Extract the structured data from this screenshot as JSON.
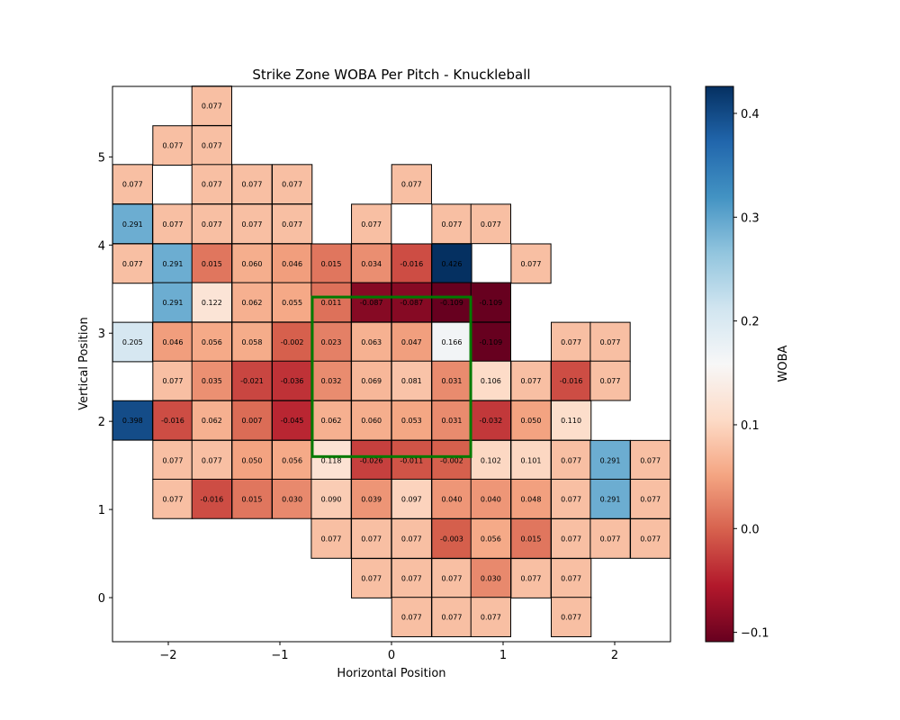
{
  "chart_data": {
    "type": "heatmap",
    "title": "Strike Zone WOBA Per Pitch - Knuckleball",
    "xlabel": "Horizontal Position",
    "ylabel": "Vertical Position",
    "xlim": [
      -2.5,
      2.5
    ],
    "ylim": [
      -0.5,
      5.8
    ],
    "xticks": [
      -2,
      -1,
      0,
      1,
      2
    ],
    "xtick_labels": [
      "−2",
      "−1",
      "0",
      "1",
      "2"
    ],
    "yticks": [
      0,
      1,
      2,
      3,
      4,
      5
    ],
    "ytick_labels": [
      "0",
      "1",
      "2",
      "3",
      "4",
      "5"
    ],
    "colorbar": {
      "label": "WOBA",
      "colormap": "RdBu",
      "range": [
        -0.109,
        0.426
      ],
      "ticks": [
        -0.1,
        0.0,
        0.1,
        0.2,
        0.3,
        0.4
      ],
      "tick_labels": [
        "−0.1",
        "0.0",
        "0.1",
        "0.2",
        "0.3",
        "0.4"
      ]
    },
    "grid": false,
    "cell_size": {
      "x": 0.357,
      "y": 0.447
    },
    "strike_zone": {
      "x": [
        -0.71,
        0.71
      ],
      "y": [
        1.6,
        3.41
      ],
      "color": "#007a00"
    },
    "cells": [
      {
        "x": -1.61,
        "y": 5.58,
        "value": 0.077
      },
      {
        "x": -1.96,
        "y": 5.13,
        "value": 0.077
      },
      {
        "x": -1.61,
        "y": 5.13,
        "value": 0.077
      },
      {
        "x": -2.32,
        "y": 4.69,
        "value": 0.077
      },
      {
        "x": -1.61,
        "y": 4.69,
        "value": 0.077
      },
      {
        "x": -1.25,
        "y": 4.69,
        "value": 0.077
      },
      {
        "x": -0.89,
        "y": 4.69,
        "value": 0.077
      },
      {
        "x": 0.18,
        "y": 4.69,
        "value": 0.077
      },
      {
        "x": -2.32,
        "y": 4.24,
        "value": 0.291
      },
      {
        "x": -1.96,
        "y": 4.24,
        "value": 0.077
      },
      {
        "x": -1.61,
        "y": 4.24,
        "value": 0.077
      },
      {
        "x": -1.25,
        "y": 4.24,
        "value": 0.077
      },
      {
        "x": -0.89,
        "y": 4.24,
        "value": 0.077
      },
      {
        "x": -0.18,
        "y": 4.24,
        "value": 0.077
      },
      {
        "x": 0.54,
        "y": 4.24,
        "value": 0.077
      },
      {
        "x": 0.89,
        "y": 4.24,
        "value": 0.077
      },
      {
        "x": -2.32,
        "y": 3.79,
        "value": 0.077
      },
      {
        "x": -1.96,
        "y": 3.79,
        "value": 0.291
      },
      {
        "x": -1.61,
        "y": 3.79,
        "value": 0.015
      },
      {
        "x": -1.25,
        "y": 3.79,
        "value": 0.06
      },
      {
        "x": -0.89,
        "y": 3.79,
        "value": 0.046
      },
      {
        "x": -0.54,
        "y": 3.79,
        "value": 0.015
      },
      {
        "x": -0.18,
        "y": 3.79,
        "value": 0.034
      },
      {
        "x": 0.18,
        "y": 3.79,
        "value": -0.016
      },
      {
        "x": 0.54,
        "y": 3.79,
        "value": 0.426
      },
      {
        "x": 1.25,
        "y": 3.79,
        "value": 0.077
      },
      {
        "x": -1.96,
        "y": 3.35,
        "value": 0.291
      },
      {
        "x": -1.61,
        "y": 3.35,
        "value": 0.122
      },
      {
        "x": -1.25,
        "y": 3.35,
        "value": 0.062
      },
      {
        "x": -0.89,
        "y": 3.35,
        "value": 0.055
      },
      {
        "x": -0.54,
        "y": 3.35,
        "value": 0.011
      },
      {
        "x": -0.18,
        "y": 3.35,
        "value": -0.087
      },
      {
        "x": 0.18,
        "y": 3.35,
        "value": -0.087
      },
      {
        "x": 0.54,
        "y": 3.35,
        "value": -0.109
      },
      {
        "x": 0.89,
        "y": 3.35,
        "value": -0.109
      },
      {
        "x": -2.32,
        "y": 2.9,
        "value": 0.205
      },
      {
        "x": -1.96,
        "y": 2.9,
        "value": 0.046
      },
      {
        "x": -1.61,
        "y": 2.9,
        "value": 0.056
      },
      {
        "x": -1.25,
        "y": 2.9,
        "value": 0.058
      },
      {
        "x": -0.89,
        "y": 2.9,
        "value": -0.002
      },
      {
        "x": -0.54,
        "y": 2.9,
        "value": 0.023
      },
      {
        "x": -0.18,
        "y": 2.9,
        "value": 0.063
      },
      {
        "x": 0.18,
        "y": 2.9,
        "value": 0.047
      },
      {
        "x": 0.54,
        "y": 2.9,
        "value": 0.166
      },
      {
        "x": 0.89,
        "y": 2.9,
        "value": -0.109
      },
      {
        "x": 1.61,
        "y": 2.9,
        "value": 0.077
      },
      {
        "x": 1.96,
        "y": 2.9,
        "value": 0.077
      },
      {
        "x": -1.96,
        "y": 2.46,
        "value": 0.077
      },
      {
        "x": -1.61,
        "y": 2.46,
        "value": 0.035
      },
      {
        "x": -1.25,
        "y": 2.46,
        "value": -0.021
      },
      {
        "x": -0.89,
        "y": 2.46,
        "value": -0.036
      },
      {
        "x": -0.54,
        "y": 2.46,
        "value": 0.032
      },
      {
        "x": -0.18,
        "y": 2.46,
        "value": 0.069
      },
      {
        "x": 0.18,
        "y": 2.46,
        "value": 0.081
      },
      {
        "x": 0.54,
        "y": 2.46,
        "value": 0.031
      },
      {
        "x": 0.89,
        "y": 2.46,
        "value": 0.106
      },
      {
        "x": 1.25,
        "y": 2.46,
        "value": 0.077
      },
      {
        "x": 1.61,
        "y": 2.46,
        "value": -0.016
      },
      {
        "x": 1.96,
        "y": 2.46,
        "value": 0.077
      },
      {
        "x": -2.32,
        "y": 2.01,
        "value": 0.398
      },
      {
        "x": -1.96,
        "y": 2.01,
        "value": -0.016
      },
      {
        "x": -1.61,
        "y": 2.01,
        "value": 0.062
      },
      {
        "x": -1.25,
        "y": 2.01,
        "value": 0.007
      },
      {
        "x": -0.89,
        "y": 2.01,
        "value": -0.045
      },
      {
        "x": -0.54,
        "y": 2.01,
        "value": 0.062
      },
      {
        "x": -0.18,
        "y": 2.01,
        "value": 0.06
      },
      {
        "x": 0.18,
        "y": 2.01,
        "value": 0.053
      },
      {
        "x": 0.54,
        "y": 2.01,
        "value": 0.031
      },
      {
        "x": 0.89,
        "y": 2.01,
        "value": -0.032
      },
      {
        "x": 1.25,
        "y": 2.01,
        "value": 0.05
      },
      {
        "x": 1.61,
        "y": 2.01,
        "value": 0.11
      },
      {
        "x": -1.96,
        "y": 1.56,
        "value": 0.077
      },
      {
        "x": -1.61,
        "y": 1.56,
        "value": 0.077
      },
      {
        "x": -1.25,
        "y": 1.56,
        "value": 0.05
      },
      {
        "x": -0.89,
        "y": 1.56,
        "value": 0.056
      },
      {
        "x": -0.54,
        "y": 1.56,
        "value": 0.118
      },
      {
        "x": -0.18,
        "y": 1.56,
        "value": -0.026
      },
      {
        "x": 0.18,
        "y": 1.56,
        "value": -0.011
      },
      {
        "x": 0.54,
        "y": 1.56,
        "value": -0.002
      },
      {
        "x": 0.89,
        "y": 1.56,
        "value": 0.102
      },
      {
        "x": 1.25,
        "y": 1.56,
        "value": 0.101
      },
      {
        "x": 1.61,
        "y": 1.56,
        "value": 0.077
      },
      {
        "x": 1.96,
        "y": 1.56,
        "value": 0.291
      },
      {
        "x": 2.32,
        "y": 1.56,
        "value": 0.077
      },
      {
        "x": -1.96,
        "y": 1.12,
        "value": 0.077
      },
      {
        "x": -1.61,
        "y": 1.12,
        "value": -0.016
      },
      {
        "x": -1.25,
        "y": 1.12,
        "value": 0.015
      },
      {
        "x": -0.89,
        "y": 1.12,
        "value": 0.03
      },
      {
        "x": -0.54,
        "y": 1.12,
        "value": 0.09
      },
      {
        "x": -0.18,
        "y": 1.12,
        "value": 0.039
      },
      {
        "x": 0.18,
        "y": 1.12,
        "value": 0.097
      },
      {
        "x": 0.54,
        "y": 1.12,
        "value": 0.04
      },
      {
        "x": 0.89,
        "y": 1.12,
        "value": 0.04
      },
      {
        "x": 1.25,
        "y": 1.12,
        "value": 0.048
      },
      {
        "x": 1.61,
        "y": 1.12,
        "value": 0.077
      },
      {
        "x": 1.96,
        "y": 1.12,
        "value": 0.291
      },
      {
        "x": 2.32,
        "y": 1.12,
        "value": 0.077
      },
      {
        "x": -0.54,
        "y": 0.67,
        "value": 0.077
      },
      {
        "x": -0.18,
        "y": 0.67,
        "value": 0.077
      },
      {
        "x": 0.18,
        "y": 0.67,
        "value": 0.077
      },
      {
        "x": 0.54,
        "y": 0.67,
        "value": -0.003
      },
      {
        "x": 0.89,
        "y": 0.67,
        "value": 0.056
      },
      {
        "x": 1.25,
        "y": 0.67,
        "value": 0.015
      },
      {
        "x": 1.61,
        "y": 0.67,
        "value": 0.077
      },
      {
        "x": 1.96,
        "y": 0.67,
        "value": 0.077
      },
      {
        "x": 2.32,
        "y": 0.67,
        "value": 0.077
      },
      {
        "x": -0.18,
        "y": 0.22,
        "value": 0.077
      },
      {
        "x": 0.18,
        "y": 0.22,
        "value": 0.077
      },
      {
        "x": 0.54,
        "y": 0.22,
        "value": 0.077
      },
      {
        "x": 0.89,
        "y": 0.22,
        "value": 0.03
      },
      {
        "x": 1.25,
        "y": 0.22,
        "value": 0.077
      },
      {
        "x": 1.61,
        "y": 0.22,
        "value": 0.077
      },
      {
        "x": 0.18,
        "y": -0.22,
        "value": 0.077
      },
      {
        "x": 0.54,
        "y": -0.22,
        "value": 0.077
      },
      {
        "x": 0.89,
        "y": -0.22,
        "value": 0.077
      },
      {
        "x": 1.61,
        "y": -0.22,
        "value": 0.077
      }
    ]
  }
}
